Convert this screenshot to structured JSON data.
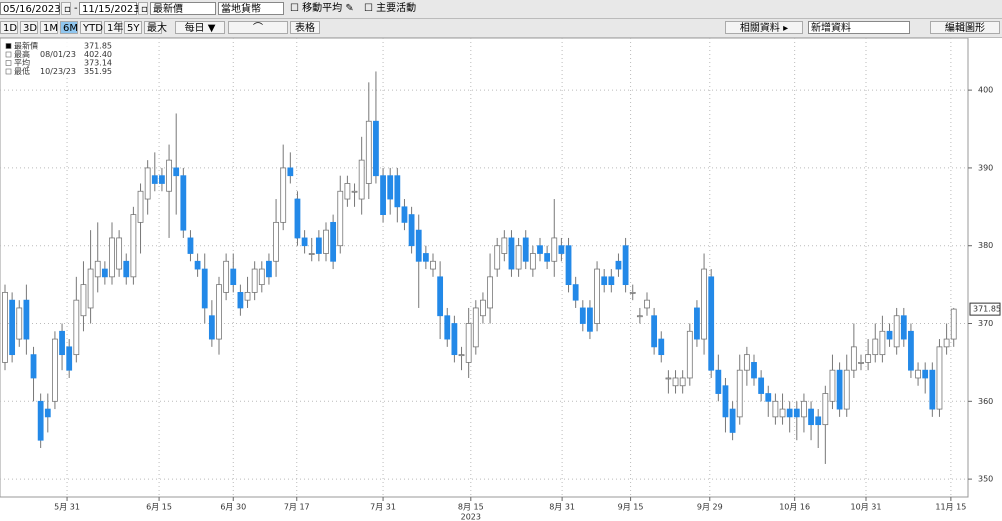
{
  "toolbar": {
    "start_date": "05/16/2023",
    "end_date": "11/15/2023",
    "price_field": "最新價",
    "currency": "當地貨幣",
    "moving_average": "移動平均",
    "key_events": "主要活動",
    "periods": [
      "1D",
      "3D",
      "1M",
      "6M",
      "YTD",
      "1年",
      "5Y",
      "最大"
    ],
    "active_period": "6M",
    "frequency": "每日 ▼",
    "table": "表格",
    "related": "相關資料 ▸",
    "add_data": "新增資料",
    "edit": "編輯圖形"
  },
  "chart_data": {
    "type": "candlestick",
    "legend": [
      {
        "label": "最新價",
        "date": null,
        "value": {
          "value": 371.85,
          "label": "371.85"
        }
      },
      {
        "label": "最高",
        "date": "08/01/23",
        "value": {
          "value": 402.4,
          "label": "402.40"
        }
      },
      {
        "label": "平均",
        "date": null,
        "value": {
          "value": 373.14,
          "label": "373.14"
        }
      },
      {
        "label": "最低",
        "date": "10/23/23",
        "value": {
          "value": 351.95,
          "label": "351.95"
        }
      }
    ],
    "up_color": "#ffffff",
    "down_color": "#2389e8",
    "wick_color": "#777777",
    "open": [
      365,
      373,
      368,
      373,
      366,
      360,
      359,
      360,
      369,
      367,
      366,
      371,
      372,
      376,
      377,
      376,
      377,
      378,
      376,
      383,
      386,
      389,
      389,
      387,
      390,
      389,
      381,
      378,
      377,
      371,
      368,
      374,
      377,
      374,
      373,
      374,
      375,
      378,
      378,
      383,
      390,
      386,
      381,
      379,
      381,
      379,
      383,
      380,
      386,
      387,
      386,
      388,
      396,
      389,
      389,
      389,
      385,
      384,
      382,
      379,
      377,
      376,
      371,
      370,
      366,
      365,
      367,
      371,
      372,
      377,
      379,
      381,
      377,
      381,
      377,
      380,
      379,
      378,
      380,
      380,
      375,
      372,
      372,
      370,
      376,
      376,
      378,
      380,
      374,
      371,
      372,
      371,
      368,
      363,
      362,
      362,
      363,
      372,
      368,
      376,
      364,
      362,
      359,
      358,
      364,
      365,
      363,
      361,
      358,
      358,
      359,
      359,
      358,
      359,
      358,
      357,
      360,
      364,
      359,
      364,
      365,
      365,
      366,
      366,
      369,
      367,
      371,
      369,
      363,
      364,
      364,
      359,
      367,
      368
    ],
    "high": [
      375,
      374,
      373,
      375,
      367,
      361,
      361,
      369,
      370,
      368,
      376,
      378,
      382,
      383,
      378,
      383,
      382,
      379,
      385,
      388,
      391,
      392,
      390,
      393,
      397,
      390,
      382,
      379,
      379,
      373,
      376,
      379,
      379,
      375,
      376,
      378,
      378,
      379,
      386,
      393,
      392,
      387,
      382,
      381,
      382,
      383,
      384,
      389,
      389,
      388,
      394,
      401,
      402.4,
      390,
      390,
      390,
      386,
      385,
      384,
      380,
      379,
      378,
      372,
      371,
      367,
      372,
      373,
      374,
      379,
      381,
      382,
      382,
      381,
      382,
      380,
      381,
      380,
      386,
      381,
      381,
      376,
      373,
      373,
      378,
      377,
      377,
      379,
      381,
      375,
      372,
      374,
      372,
      369,
      364,
      364,
      364,
      370,
      373,
      379,
      377,
      366,
      363,
      360,
      366,
      367,
      366,
      364,
      362,
      361,
      361,
      360,
      360,
      361,
      360,
      359,
      362,
      366,
      365,
      366,
      370,
      366,
      368,
      370,
      371,
      370,
      372,
      372,
      370,
      365,
      365,
      365,
      368,
      370,
      372
    ],
    "low": [
      364,
      365,
      367,
      366,
      360,
      354,
      356,
      359,
      364,
      363,
      365,
      369,
      370,
      374,
      375,
      375,
      376,
      375,
      375,
      379,
      384,
      387,
      387,
      381,
      384,
      381,
      378,
      376,
      370,
      367,
      366,
      373,
      374,
      371,
      372,
      373,
      374,
      375,
      376,
      382,
      388,
      380,
      379,
      378,
      378,
      378,
      377,
      379,
      385,
      385,
      384,
      386,
      388,
      383,
      384,
      383,
      382,
      379,
      372,
      377,
      376,
      368,
      367,
      365,
      364,
      363,
      366,
      370,
      370,
      376,
      378,
      376,
      376,
      377,
      376,
      378,
      377,
      376,
      378,
      374,
      372,
      369,
      368,
      369,
      374,
      374,
      376,
      374,
      373,
      370,
      371,
      366,
      365,
      361,
      361,
      361,
      362,
      367,
      366,
      363,
      360,
      356,
      355,
      357,
      362,
      362,
      360,
      358,
      357,
      357,
      356,
      355,
      356,
      355,
      354,
      351.95,
      359,
      358,
      358,
      363,
      364,
      364,
      365,
      365,
      367,
      366,
      367,
      363,
      362,
      361,
      358,
      358,
      366,
      367
    ],
    "close": [
      374,
      366,
      372,
      368,
      363,
      355,
      358,
      368,
      366,
      364,
      373,
      375,
      377,
      378,
      376,
      381,
      381,
      376,
      384,
      387,
      390,
      388,
      388,
      391,
      389,
      382,
      379,
      377,
      372,
      368,
      375,
      378,
      375,
      372,
      374,
      377,
      377,
      376,
      383,
      390,
      389,
      381,
      380,
      379,
      379,
      382,
      378,
      387,
      388,
      387,
      391,
      396,
      389,
      384,
      386,
      385,
      383,
      380,
      378,
      378,
      378,
      371,
      368,
      366,
      366,
      370,
      372,
      373,
      376,
      380,
      381,
      377,
      380,
      378,
      379,
      379,
      378,
      381,
      379,
      375,
      373,
      370,
      369,
      377,
      375,
      375,
      377,
      375,
      374,
      371,
      373,
      367,
      366,
      363,
      363,
      363,
      369,
      368,
      377,
      364,
      361,
      358,
      356,
      364,
      366,
      363,
      361,
      360,
      360,
      359,
      358,
      358,
      360,
      357,
      357,
      361,
      364,
      359,
      364,
      367,
      365,
      366,
      368,
      369,
      368,
      371,
      368,
      364,
      364,
      363,
      359,
      367,
      368,
      371.85
    ],
    "xlim": [
      -0.7,
      135
    ],
    "xticks": [
      {
        "value": 8.7,
        "label": "5月 31"
      },
      {
        "value": 21.6,
        "label": "6月 15"
      },
      {
        "value": 32,
        "label": "6月 30"
      },
      {
        "value": 40.9,
        "label": "7月 17"
      },
      {
        "value": 53,
        "label": "7月 31"
      },
      {
        "value": 65.3,
        "label": "8月 15"
      },
      {
        "value": 78.1,
        "label": "8月 31"
      },
      {
        "value": 87.7,
        "label": "9月 15"
      },
      {
        "value": 98.8,
        "label": "9月 29"
      },
      {
        "value": 110.7,
        "label": "10月 16"
      },
      {
        "value": 120.7,
        "label": "10月 31"
      },
      {
        "value": 132.6,
        "label": "11月 15"
      }
    ],
    "x_year": {
      "value": 65.3,
      "label": "2023"
    },
    "ylim": [
      347.7,
      406.7
    ],
    "yticks": [
      350,
      360,
      370,
      380,
      390,
      400
    ],
    "grid": true
  }
}
